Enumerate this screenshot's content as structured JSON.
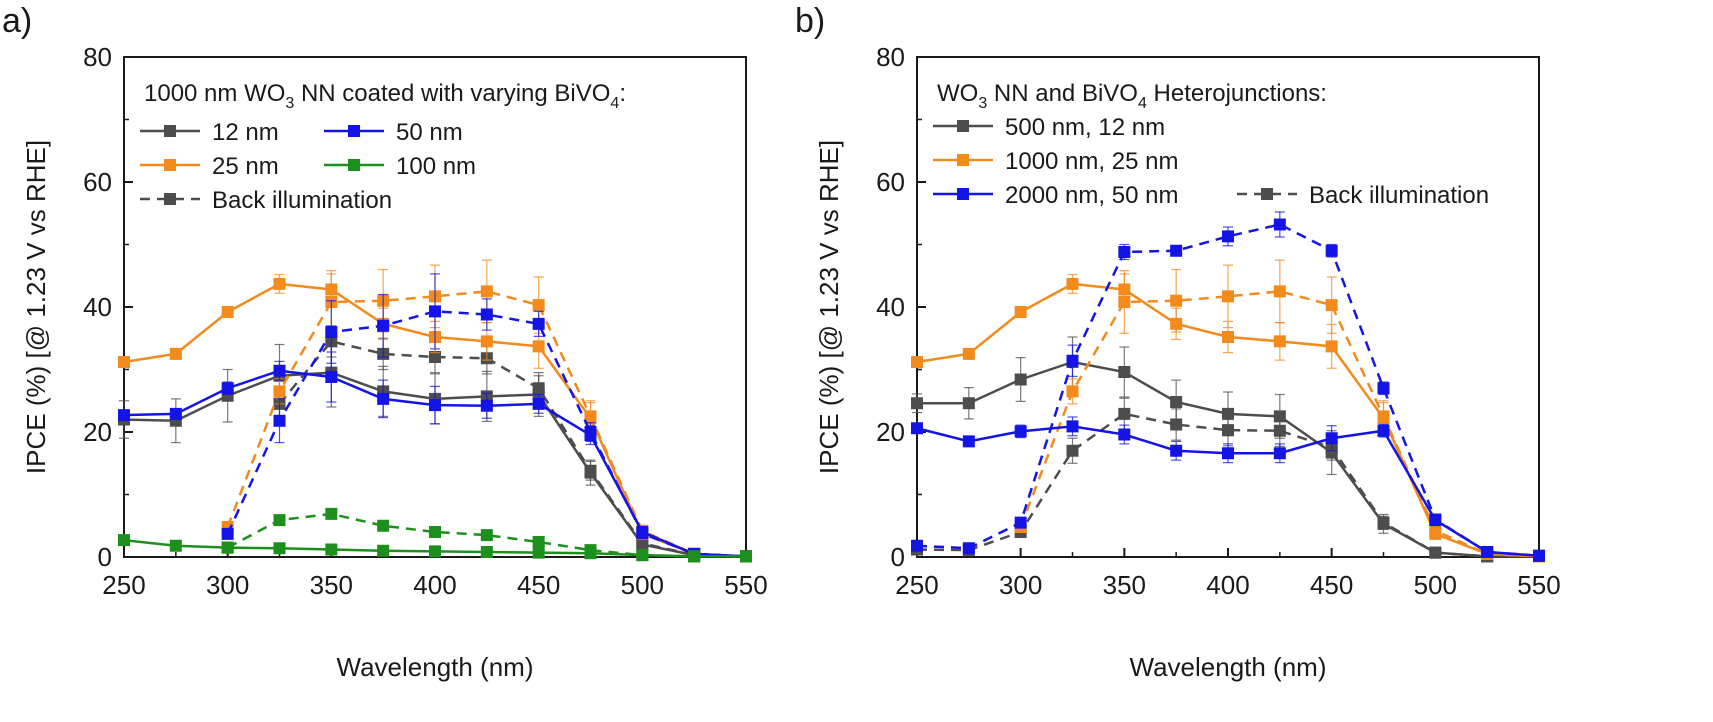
{
  "chart_data": [
    {
      "type": "line",
      "panel_label": "a)",
      "xlabel": "Wavelength (nm)",
      "ylabel": "IPCE (%) [@ 1.23 V vs RHE]",
      "xlim": [
        250,
        550
      ],
      "ylim": [
        0,
        80
      ],
      "xticks": [
        250,
        300,
        350,
        400,
        450,
        500,
        550
      ],
      "yticks": [
        0,
        20,
        40,
        60,
        80
      ],
      "legend_title": {
        "pre": "1000 nm WO",
        "sub": "3",
        "mid": " NN coated with varying BiVO",
        "sub2": "4",
        "post": ":"
      },
      "legend_placement": "top-left",
      "legend_entries": [
        "12 nm",
        "50 nm",
        "25 nm",
        "100 nm",
        "Back illumination"
      ],
      "x": [
        250,
        275,
        300,
        325,
        350,
        375,
        400,
        425,
        450,
        475,
        500,
        525,
        550
      ],
      "series": [
        {
          "name": "12 nm",
          "style": "solid",
          "color": "#4d4d4d",
          "values": [
            22.0,
            21.8,
            25.8,
            29.0,
            29.5,
            26.5,
            25.3,
            25.7,
            26.0,
            13.5,
            2.0,
            0.3,
            0.1
          ],
          "errors": [
            3.0,
            3.5,
            4.2,
            5.0,
            5.5,
            4.0,
            4.0,
            4.0,
            3.5,
            2.0,
            0.5,
            0,
            0
          ]
        },
        {
          "name": "12 nm",
          "style": "dashed",
          "color": "#4d4d4d",
          "values": [
            null,
            null,
            null,
            24.5,
            34.5,
            32.5,
            32.0,
            31.8,
            27.0,
            13.8,
            2.2,
            0.3,
            0.1
          ],
          "errors": [
            0,
            0,
            0,
            2.0,
            2.5,
            2.5,
            2.5,
            2.5,
            2.0,
            1.5,
            0,
            0,
            0
          ]
        },
        {
          "name": "25 nm",
          "style": "solid",
          "color": "#f28a1c",
          "values": [
            31.2,
            32.5,
            39.2,
            43.7,
            42.8,
            37.3,
            35.2,
            34.5,
            33.7,
            22.2,
            3.7,
            0.5,
            0.1
          ],
          "errors": [
            0.5,
            0.5,
            0.7,
            1.5,
            2.5,
            2.5,
            2.5,
            3.0,
            3.5,
            2.5,
            0.5,
            0,
            0
          ]
        },
        {
          "name": "25 nm",
          "style": "dashed",
          "color": "#f28a1c",
          "values": [
            null,
            null,
            4.8,
            26.5,
            40.8,
            41.0,
            41.7,
            42.5,
            40.3,
            22.5,
            4.2,
            0.5,
            0.1
          ],
          "errors": [
            0,
            0,
            0.5,
            2.0,
            5.0,
            5.0,
            5.0,
            5.0,
            4.5,
            2.5,
            0.5,
            0,
            0
          ]
        },
        {
          "name": "50 nm",
          "style": "solid",
          "color": "#1414e6",
          "values": [
            22.7,
            22.9,
            27.0,
            29.8,
            28.8,
            25.3,
            24.3,
            24.2,
            24.5,
            19.5,
            4.0,
            0.5,
            0.1
          ],
          "errors": [
            0.5,
            0.5,
            1.0,
            1.5,
            4.0,
            3.0,
            3.0,
            2.0,
            1.5,
            1.5,
            0.5,
            0,
            0
          ]
        },
        {
          "name": "50 nm",
          "style": "dashed",
          "color": "#1414e6",
          "values": [
            null,
            null,
            3.7,
            21.8,
            36.0,
            37.0,
            39.3,
            38.8,
            37.3,
            20.0,
            3.8,
            0.5,
            0.1
          ],
          "errors": [
            0,
            0,
            0.5,
            3.5,
            5.0,
            5.0,
            6.0,
            2.5,
            2.0,
            1.5,
            0.5,
            0,
            0
          ]
        },
        {
          "name": "100 nm",
          "style": "solid",
          "color": "#1c8f1c",
          "values": [
            2.7,
            1.8,
            1.5,
            1.4,
            1.2,
            1.0,
            0.9,
            0.8,
            0.7,
            0.6,
            0.3,
            0.1,
            0.1
          ],
          "errors": [
            0,
            0,
            0,
            0,
            0,
            0,
            0,
            0,
            0,
            0,
            0,
            0,
            0
          ]
        },
        {
          "name": "100 nm",
          "style": "dashed",
          "color": "#1c8f1c",
          "values": [
            null,
            null,
            1.5,
            5.9,
            6.9,
            5.0,
            4.0,
            3.5,
            2.4,
            1.1,
            0.3,
            0.1,
            0.1
          ],
          "errors": [
            0,
            0,
            0,
            0,
            0,
            0,
            0,
            0,
            0,
            0,
            0,
            0,
            0
          ]
        }
      ]
    },
    {
      "type": "line",
      "panel_label": "b)",
      "xlabel": "Wavelength (nm)",
      "ylabel": "IPCE (%) [@ 1.23 V vs RHE]",
      "xlim": [
        250,
        550
      ],
      "ylim": [
        0,
        80
      ],
      "xticks": [
        250,
        300,
        350,
        400,
        450,
        500,
        550
      ],
      "yticks": [
        0,
        20,
        40,
        60,
        80
      ],
      "legend_title": {
        "pre": "WO",
        "sub": "3",
        "mid": " NN and BiVO",
        "sub2": "4",
        "post": " Heterojunctions:"
      },
      "legend_placement": "top-left",
      "legend_entries": [
        "500 nm, 12 nm",
        "1000 nm, 25 nm",
        "2000 nm, 50 nm",
        "Back illumination"
      ],
      "x": [
        250,
        275,
        300,
        325,
        350,
        375,
        400,
        425,
        450,
        475,
        500,
        525,
        550
      ],
      "series": [
        {
          "name": "500 nm, 12 nm",
          "style": "solid",
          "color": "#4d4d4d",
          "values": [
            24.6,
            24.6,
            28.4,
            31.2,
            29.6,
            24.8,
            22.9,
            22.5,
            16.7,
            5.3,
            0.7,
            0.1,
            0.1
          ],
          "errors": [
            1.5,
            2.5,
            3.5,
            4.0,
            4.0,
            3.5,
            3.5,
            3.5,
            3.5,
            1.5,
            0.5,
            0,
            0
          ]
        },
        {
          "name": "500 nm, 12 nm",
          "style": "dashed",
          "color": "#4d4d4d",
          "values": [
            1.2,
            1.1,
            4.0,
            17.0,
            22.9,
            21.2,
            20.3,
            20.2,
            17.5,
            5.5,
            0.7,
            0.1,
            0.1
          ],
          "errors": [
            0,
            0,
            0.5,
            2.0,
            2.5,
            2.5,
            2.5,
            2.5,
            2.0,
            1.0,
            0,
            0,
            0
          ]
        },
        {
          "name": "1000 nm, 25 nm",
          "style": "solid",
          "color": "#f28a1c",
          "values": [
            31.2,
            32.5,
            39.2,
            43.7,
            42.8,
            37.3,
            35.2,
            34.5,
            33.7,
            22.2,
            3.7,
            0.5,
            0.1
          ],
          "errors": [
            0.5,
            0.5,
            0.7,
            1.5,
            2.5,
            2.5,
            2.5,
            3.0,
            3.5,
            2.5,
            0.5,
            0,
            0
          ]
        },
        {
          "name": "1000 nm, 25 nm",
          "style": "dashed",
          "color": "#f28a1c",
          "values": [
            null,
            null,
            4.8,
            26.5,
            40.8,
            41.0,
            41.7,
            42.5,
            40.3,
            22.5,
            4.2,
            0.5,
            0.1
          ],
          "errors": [
            0,
            0,
            0.5,
            2.0,
            5.0,
            5.0,
            5.0,
            5.0,
            4.5,
            2.5,
            0.5,
            0,
            0
          ]
        },
        {
          "name": "2000 nm, 50 nm",
          "style": "solid",
          "color": "#1414e6",
          "values": [
            20.6,
            18.5,
            20.1,
            20.9,
            19.6,
            17.0,
            16.6,
            16.6,
            19.0,
            20.2,
            5.9,
            0.8,
            0.2
          ],
          "errors": [
            0.5,
            0.5,
            1.0,
            1.5,
            1.5,
            1.5,
            1.5,
            1.5,
            2.0,
            1.0,
            0.5,
            0,
            0
          ]
        },
        {
          "name": "2000 nm, 50 nm",
          "style": "dashed",
          "color": "#1414e6",
          "values": [
            1.8,
            1.4,
            5.5,
            31.4,
            48.8,
            49.0,
            51.3,
            53.2,
            49.0,
            27.0,
            6.0,
            0.8,
            0.2
          ],
          "errors": [
            0,
            0,
            0.5,
            2.5,
            1.2,
            0.5,
            1.5,
            2.0,
            1.0,
            1.0,
            0.5,
            0,
            0
          ]
        }
      ]
    }
  ]
}
